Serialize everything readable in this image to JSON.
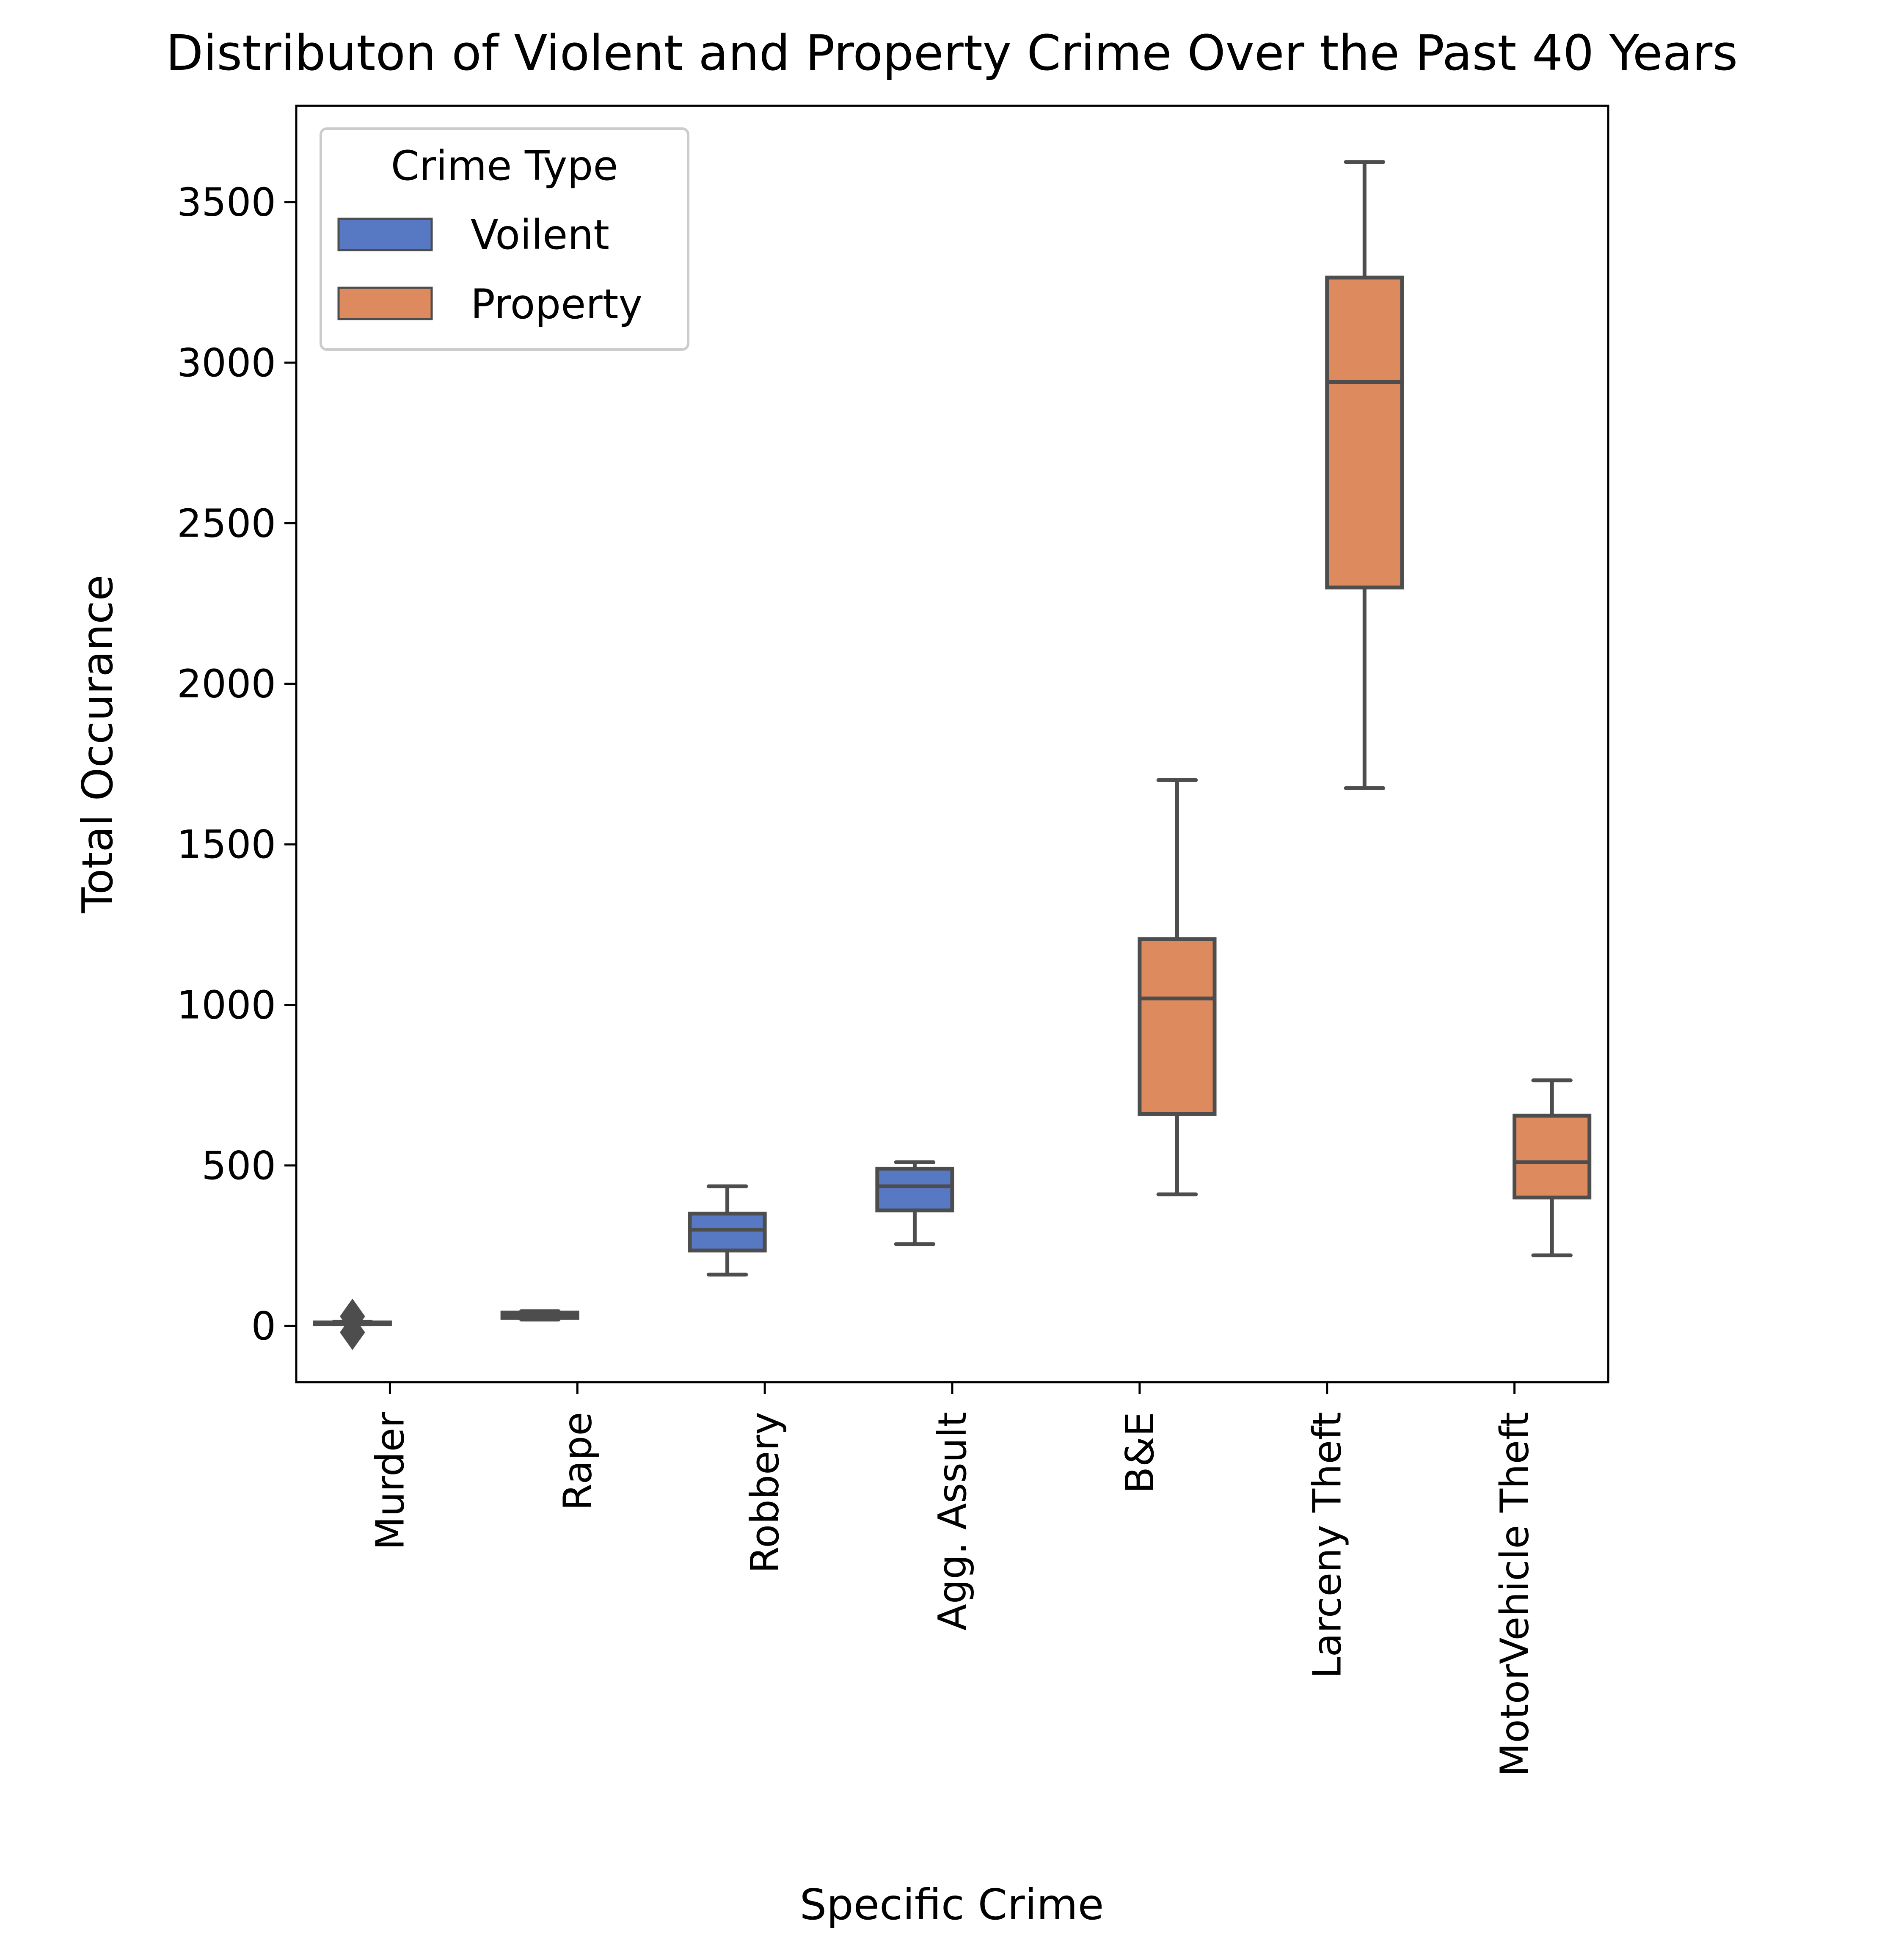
{
  "chart_data": {
    "type": "box",
    "title": "Distributon of Violent and Property Crime Over the Past 40 Years",
    "xlabel": "Specific Crime",
    "ylabel": "Total Occurance",
    "ylim": [
      -175,
      3800
    ],
    "yticks": [
      0,
      500,
      1000,
      1500,
      2000,
      2500,
      3000,
      3500
    ],
    "grid": false,
    "legend": {
      "title": "Crime Type",
      "placement": "top-left",
      "entries": [
        {
          "label": "Voilent",
          "color": "#5778c2"
        },
        {
          "label": "Property",
          "color": "#dc8a5e"
        }
      ]
    },
    "categories": [
      "Murder",
      "Rape",
      "Robbery",
      "Agg. Assult",
      "B&E",
      "Larceny Theft",
      "MotorVehicle Theft"
    ],
    "hue_offsets": {
      "Voilent": -0.2,
      "Property": 0.2
    },
    "boxes": [
      {
        "category": "Murder",
        "type": "Voilent",
        "whisker_low": 5,
        "q1": 7,
        "median": 9,
        "q3": 11,
        "whisker_high": 13,
        "outliers": [
          -20,
          30
        ]
      },
      {
        "category": "Rape",
        "type": "Voilent",
        "whisker_low": 20,
        "q1": 25,
        "median": 35,
        "q3": 42,
        "whisker_high": 46,
        "outliers": []
      },
      {
        "category": "Robbery",
        "type": "Voilent",
        "whisker_low": 160,
        "q1": 235,
        "median": 300,
        "q3": 350,
        "whisker_high": 435,
        "outliers": []
      },
      {
        "category": "Agg. Assult",
        "type": "Voilent",
        "whisker_low": 255,
        "q1": 360,
        "median": 435,
        "q3": 490,
        "whisker_high": 510,
        "outliers": []
      },
      {
        "category": "B&E",
        "type": "Property",
        "whisker_low": 410,
        "q1": 660,
        "median": 1020,
        "q3": 1205,
        "whisker_high": 1700,
        "outliers": []
      },
      {
        "category": "Larceny Theft",
        "type": "Property",
        "whisker_low": 1675,
        "q1": 2300,
        "median": 2940,
        "q3": 3265,
        "whisker_high": 3625,
        "outliers": []
      },
      {
        "category": "MotorVehicle Theft",
        "type": "Property",
        "whisker_low": 220,
        "q1": 400,
        "median": 510,
        "q3": 655,
        "whisker_high": 765,
        "outliers": []
      }
    ],
    "colors": {
      "box_edge": "#4d4d4d",
      "axis": "#000000",
      "legend_border": "#cccccc"
    }
  }
}
